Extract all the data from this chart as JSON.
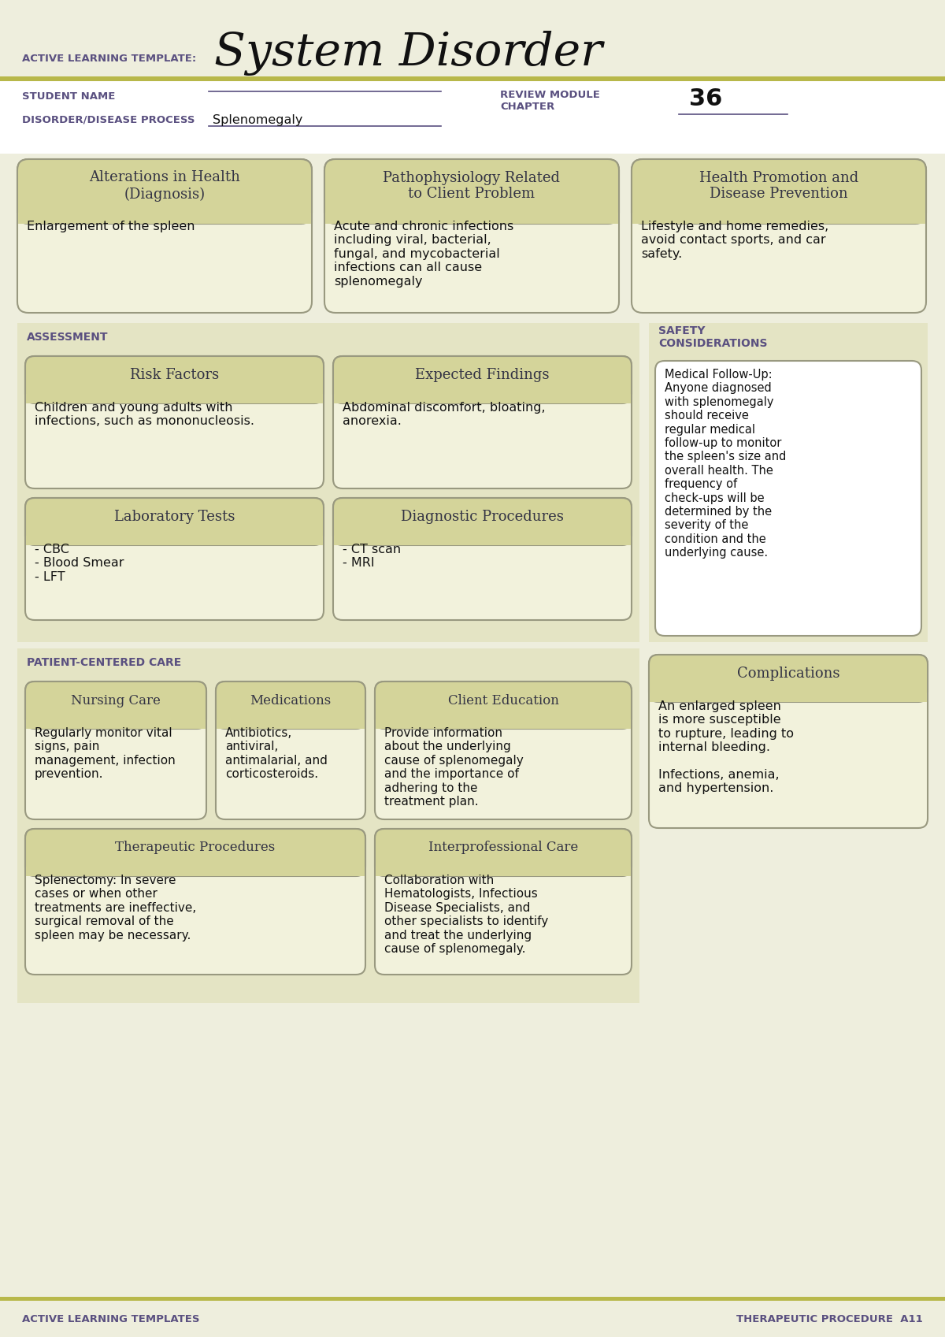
{
  "title_small": "ACTIVE LEARNING TEMPLATE:",
  "title_large": "System Disorder",
  "bg_color": "#eeeedd",
  "white": "#ffffff",
  "olive_bar_color": "#b8b84a",
  "box_header_color": "#d4d49a",
  "box_bg_color": "#f2f2dc",
  "section_bg_color": "#e4e4c4",
  "border_color": "#999980",
  "text_dark": "#333344",
  "text_black": "#111111",
  "purple_text": "#5a5080",
  "student_name_label": "STUDENT NAME",
  "disorder_label": "DISORDER/DISEASE PROCESS",
  "disorder_value": "Splenomegaly",
  "review_module_label": "REVIEW MODULE\nCHAPTER",
  "review_module_value": "36",
  "box1_title": "Alterations in Health\n(Diagnosis)",
  "box1_content": "Enlargement of the spleen",
  "box2_title": "Pathophysiology Related\nto Client Problem",
  "box2_content": "Acute and chronic infections\nincluding viral, bacterial,\nfungal, and mycobacterial\ninfections can all cause\nsplenomegaly",
  "box3_title": "Health Promotion and\nDisease Prevention",
  "box3_content": "Lifestyle and home remedies,\navoid contact sports, and car\nsafety.",
  "assessment_label": "ASSESSMENT",
  "safety_label": "SAFETY\nCONSIDERATIONS",
  "risk_title": "Risk Factors",
  "risk_content": "Children and young adults with\ninfections, such as mononucleosis.",
  "expected_title": "Expected Findings",
  "expected_content": "Abdominal discomfort, bloating,\nanorexia.",
  "lab_title": "Laboratory Tests",
  "lab_content": "- CBC\n- Blood Smear\n- LFT",
  "diag_title": "Diagnostic Procedures",
  "diag_content": "- CT scan\n- MRI",
  "safety_content": "Medical Follow-Up:\nAnyone diagnosed\nwith splenomegaly\nshould receive\nregular medical\nfollow-up to monitor\nthe spleen's size and\noverall health. The\nfrequency of\ncheck-ups will be\ndetermined by the\nseverity of the\ncondition and the\nunderlying cause.",
  "patient_care_label": "PATIENT-CENTERED CARE",
  "complications_title": "Complications",
  "complications_content": "An enlarged spleen\nis more susceptible\nto rupture, leading to\ninternal bleeding.\n\nInfections, anemia,\nand hypertension.",
  "nursing_title": "Nursing Care",
  "nursing_content": "Regularly monitor vital\nsigns, pain\nmanagement, infection\nprevention.",
  "meds_title": "Medications",
  "meds_content": "Antibiotics,\nantiviral,\nantimalarial, and\ncorticosteroids.",
  "client_edu_title": "Client Education",
  "client_edu_content": "Provide information\nabout the underlying\ncause of splenomegaly\nand the importance of\nadhering to the\ntreatment plan.",
  "therapeutic_title": "Therapeutic Procedures",
  "therapeutic_content": "Splenectomy: In severe\ncases or when other\ntreatments are ineffective,\nsurgical removal of the\nspleen may be necessary.",
  "interpro_title": "Interprofessional Care",
  "interpro_content": "Collaboration with\nHematologists, Infectious\nDisease Specialists, and\nother specialists to identify\nand treat the underlying\ncause of splenomegaly.",
  "footer_left": "ACTIVE LEARNING TEMPLATES",
  "footer_right": "THERAPEUTIC PROCEDURE  A11"
}
